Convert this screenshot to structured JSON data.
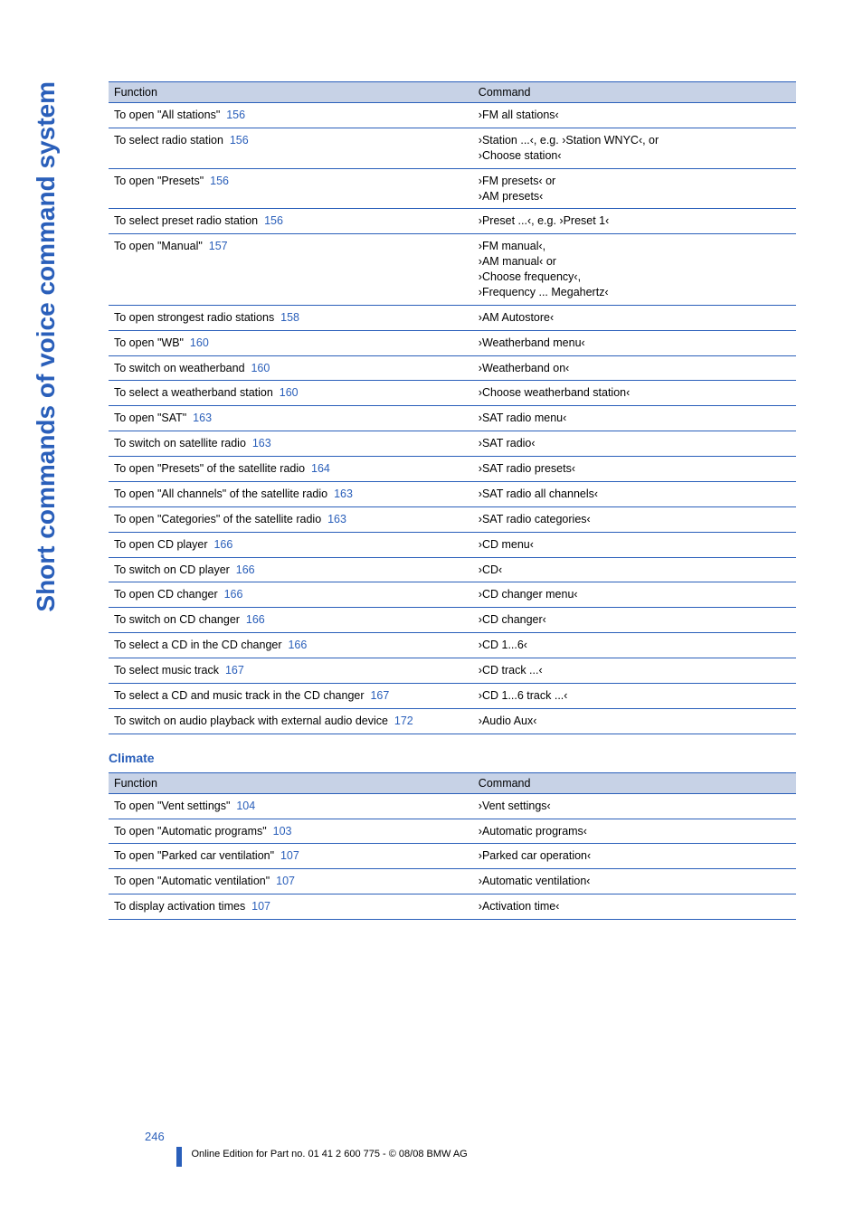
{
  "sidecap": "Short commands of voice command system",
  "table1": {
    "headers": [
      "Function",
      "Command"
    ],
    "rows": [
      {
        "funcPre": "To open \"All stations\"",
        "page": "156",
        "cmd": "›FM all stations‹"
      },
      {
        "funcPre": "To select radio station",
        "page": "156",
        "cmd": "›Station ...‹, e.g. ›Station WNYC‹, or\n›Choose station‹"
      },
      {
        "funcPre": "To open \"Presets\"",
        "page": "156",
        "cmd": "›FM presets‹ or\n›AM presets‹"
      },
      {
        "funcPre": "To select preset radio station",
        "page": "156",
        "cmd": "›Preset ...‹, e.g. ›Preset 1‹"
      },
      {
        "funcPre": "To open \"Manual\"",
        "page": "157",
        "cmd": "›FM manual‹,\n›AM manual‹ or\n›Choose frequency‹,\n›Frequency ... Megahertz‹"
      },
      {
        "funcPre": "To open strongest radio stations",
        "page": "158",
        "cmd": "›AM Autostore‹"
      },
      {
        "funcPre": "To open \"WB\"",
        "page": "160",
        "cmd": "›Weatherband menu‹"
      },
      {
        "funcPre": "To switch on weatherband",
        "page": "160",
        "cmd": "›Weatherband on‹"
      },
      {
        "funcPre": "To select a weatherband station",
        "page": "160",
        "cmd": "›Choose weatherband station‹"
      },
      {
        "funcPre": "To open \"SAT\"",
        "page": "163",
        "cmd": "›SAT radio menu‹"
      },
      {
        "funcPre": "To switch on satellite radio",
        "page": "163",
        "cmd": "›SAT radio‹"
      },
      {
        "funcPre": "To open \"Presets\" of the satellite radio",
        "page": "164",
        "cmd": "›SAT radio presets‹"
      },
      {
        "funcPre": "To open \"All channels\" of the satellite radio",
        "page": "163",
        "cmd": "›SAT radio all channels‹"
      },
      {
        "funcPre": "To open \"Categories\" of the satellite radio",
        "page": "163",
        "cmd": "›SAT radio categories‹"
      },
      {
        "funcPre": "To open CD player",
        "page": "166",
        "cmd": "›CD menu‹"
      },
      {
        "funcPre": "To switch on CD player",
        "page": "166",
        "cmd": "›CD‹"
      },
      {
        "funcPre": "To open CD changer",
        "page": "166",
        "cmd": "›CD changer menu‹"
      },
      {
        "funcPre": "To switch on CD changer",
        "page": "166",
        "cmd": "›CD changer‹"
      },
      {
        "funcPre": "To select a CD in the CD changer",
        "page": "166",
        "cmd": "›CD 1...6‹"
      },
      {
        "funcPre": "To select music track",
        "page": "167",
        "cmd": "›CD track ...‹"
      },
      {
        "funcPre": "To select a CD and music track in the CD changer",
        "page": "167",
        "cmd": "›CD 1...6 track ...‹"
      },
      {
        "funcPre": "To switch on audio playback with external audio device",
        "page": "172",
        "cmd": "›Audio Aux‹"
      }
    ]
  },
  "section2_title": "Climate",
  "table2": {
    "headers": [
      "Function",
      "Command"
    ],
    "rows": [
      {
        "funcPre": "To open \"Vent settings\"",
        "page": "104",
        "cmd": "›Vent settings‹"
      },
      {
        "funcPre": "To open \"Automatic programs\"",
        "page": "103",
        "cmd": "›Automatic programs‹"
      },
      {
        "funcPre": "To open \"Parked car ventilation\"",
        "page": "107",
        "cmd": "›Parked car operation‹"
      },
      {
        "funcPre": "To open \"Automatic ventilation\"",
        "page": "107",
        "cmd": "›Automatic ventilation‹"
      },
      {
        "funcPre": "To display activation times",
        "page": "107",
        "cmd": "›Activation time‹"
      }
    ]
  },
  "footer": {
    "pagenum": "246",
    "note": "Online Edition for Part no. 01 41 2 600 775 - © 08/08 BMW AG"
  },
  "colors": {
    "accent": "#2a5fba",
    "headerbg": "#c7d2e6",
    "text": "#000000",
    "bg": "#ffffff"
  }
}
